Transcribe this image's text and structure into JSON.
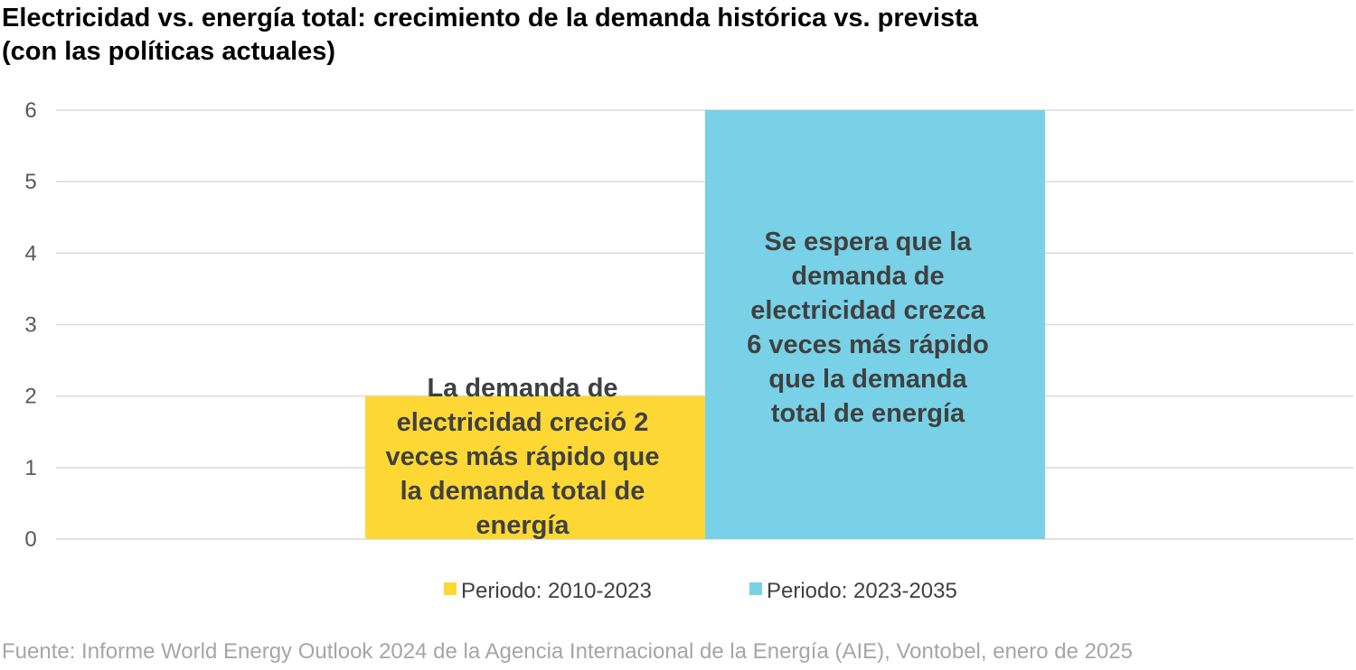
{
  "title_lines": [
    "Electricidad vs. energía total: crecimiento de la demanda histórica vs. prevista",
    "(con las políticas actuales)"
  ],
  "source": "Fuente: Informe World Energy Outlook 2024 de la Agencia Internacional de la Energía (AIE), Vontobel, enero de 2025",
  "colors": {
    "grid": "#d9d9d9",
    "tick_text": "#595959",
    "annotation_text": "#404040",
    "legend_text": "#404040"
  },
  "chart_data": {
    "type": "bar",
    "title": "Electricidad vs. energía total: crecimiento de la demanda histórica vs. prevista (con las políticas actuales)",
    "categories": [
      ""
    ],
    "series": [
      {
        "name": "Periodo: 2010-2023",
        "color": "#fdd835",
        "values": [
          2
        ],
        "annotation": [
          "La demanda de",
          "electricidad creció 2",
          "veces más rápido que",
          "la demanda total de",
          "energía"
        ]
      },
      {
        "name": "Periodo: 2023-2035",
        "color": "#78d1e6",
        "values": [
          6
        ],
        "annotation": [
          "Se espera que la",
          "demanda de",
          "electricidad crezca",
          "6 veces más rápido",
          "que la demanda",
          "total de energía"
        ]
      }
    ],
    "yticks": [
      "0",
      "1",
      "2",
      "3",
      "4",
      "5",
      "6"
    ],
    "ylim": [
      0,
      6
    ],
    "grid": true,
    "legend_position": "bottom",
    "xlabel": "",
    "ylabel": ""
  }
}
